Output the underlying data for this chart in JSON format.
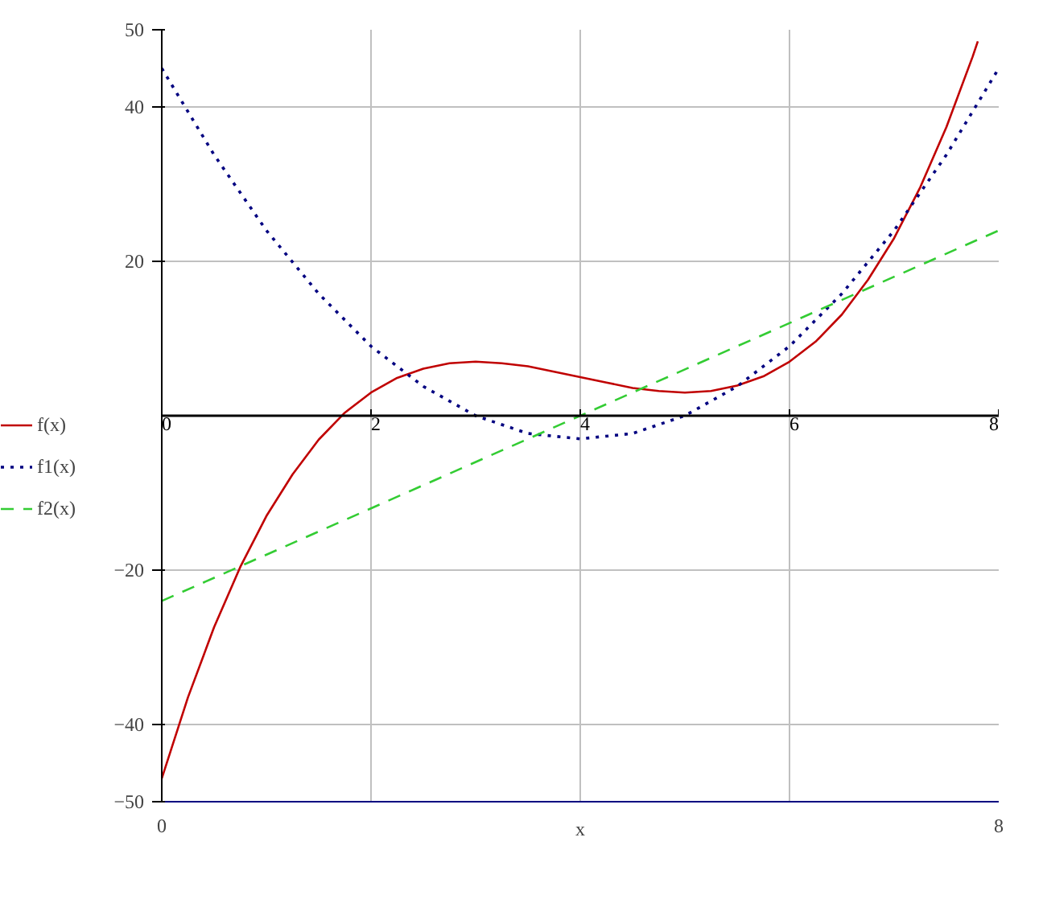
{
  "chart_data": {
    "type": "line",
    "xlabel": "x",
    "xlim": [
      0,
      8
    ],
    "ylim": [
      -50,
      50
    ],
    "xticks": [
      0,
      8
    ],
    "x2lim": [
      0,
      8
    ],
    "x2ticks": [
      0,
      2,
      4,
      6,
      8
    ],
    "yticks": [
      -50,
      -40,
      -20,
      20,
      40,
      50
    ],
    "grid": true,
    "legend": "left",
    "series": [
      {
        "name": "f(x)",
        "color": "#c00000",
        "line_style": "solid",
        "x": [
          0,
          0.25,
          0.5,
          0.75,
          1,
          1.25,
          1.5,
          1.75,
          2,
          2.25,
          2.5,
          2.75,
          3,
          3.25,
          3.5,
          3.75,
          4,
          4.25,
          4.5,
          4.75,
          5,
          5.25,
          5.5,
          5.75,
          6,
          6.25,
          6.5,
          6.75,
          7,
          7.25,
          7.5,
          7.75,
          7.8
        ],
        "values": [
          -47,
          -36.5,
          -27.4,
          -19.6,
          -13,
          -7.6,
          -3.1,
          0.4,
          3,
          4.9,
          6.1,
          6.8,
          7,
          6.8,
          6.4,
          5.7,
          5,
          4.3,
          3.6,
          3.2,
          3,
          3.2,
          3.9,
          5.1,
          7,
          9.6,
          13.1,
          17.6,
          23,
          29.6,
          37.4,
          46.5,
          48.5
        ]
      },
      {
        "name": "f1(x)",
        "color": "#000080",
        "line_style": "dotted",
        "x": [
          0,
          0.5,
          1,
          1.5,
          2,
          2.5,
          3,
          3.5,
          4,
          4.5,
          5,
          5.5,
          6,
          6.5,
          7,
          7.5,
          8
        ],
        "values": [
          45,
          33.8,
          24,
          15.8,
          9,
          3.8,
          0,
          -2.3,
          -3,
          -2.3,
          0,
          3.8,
          9,
          15.8,
          24,
          33.8,
          45
        ]
      },
      {
        "name": "f2(x)",
        "color": "#33cc33",
        "line_style": "dashed",
        "x": [
          0,
          8
        ],
        "values": [
          -24,
          24
        ]
      }
    ]
  }
}
